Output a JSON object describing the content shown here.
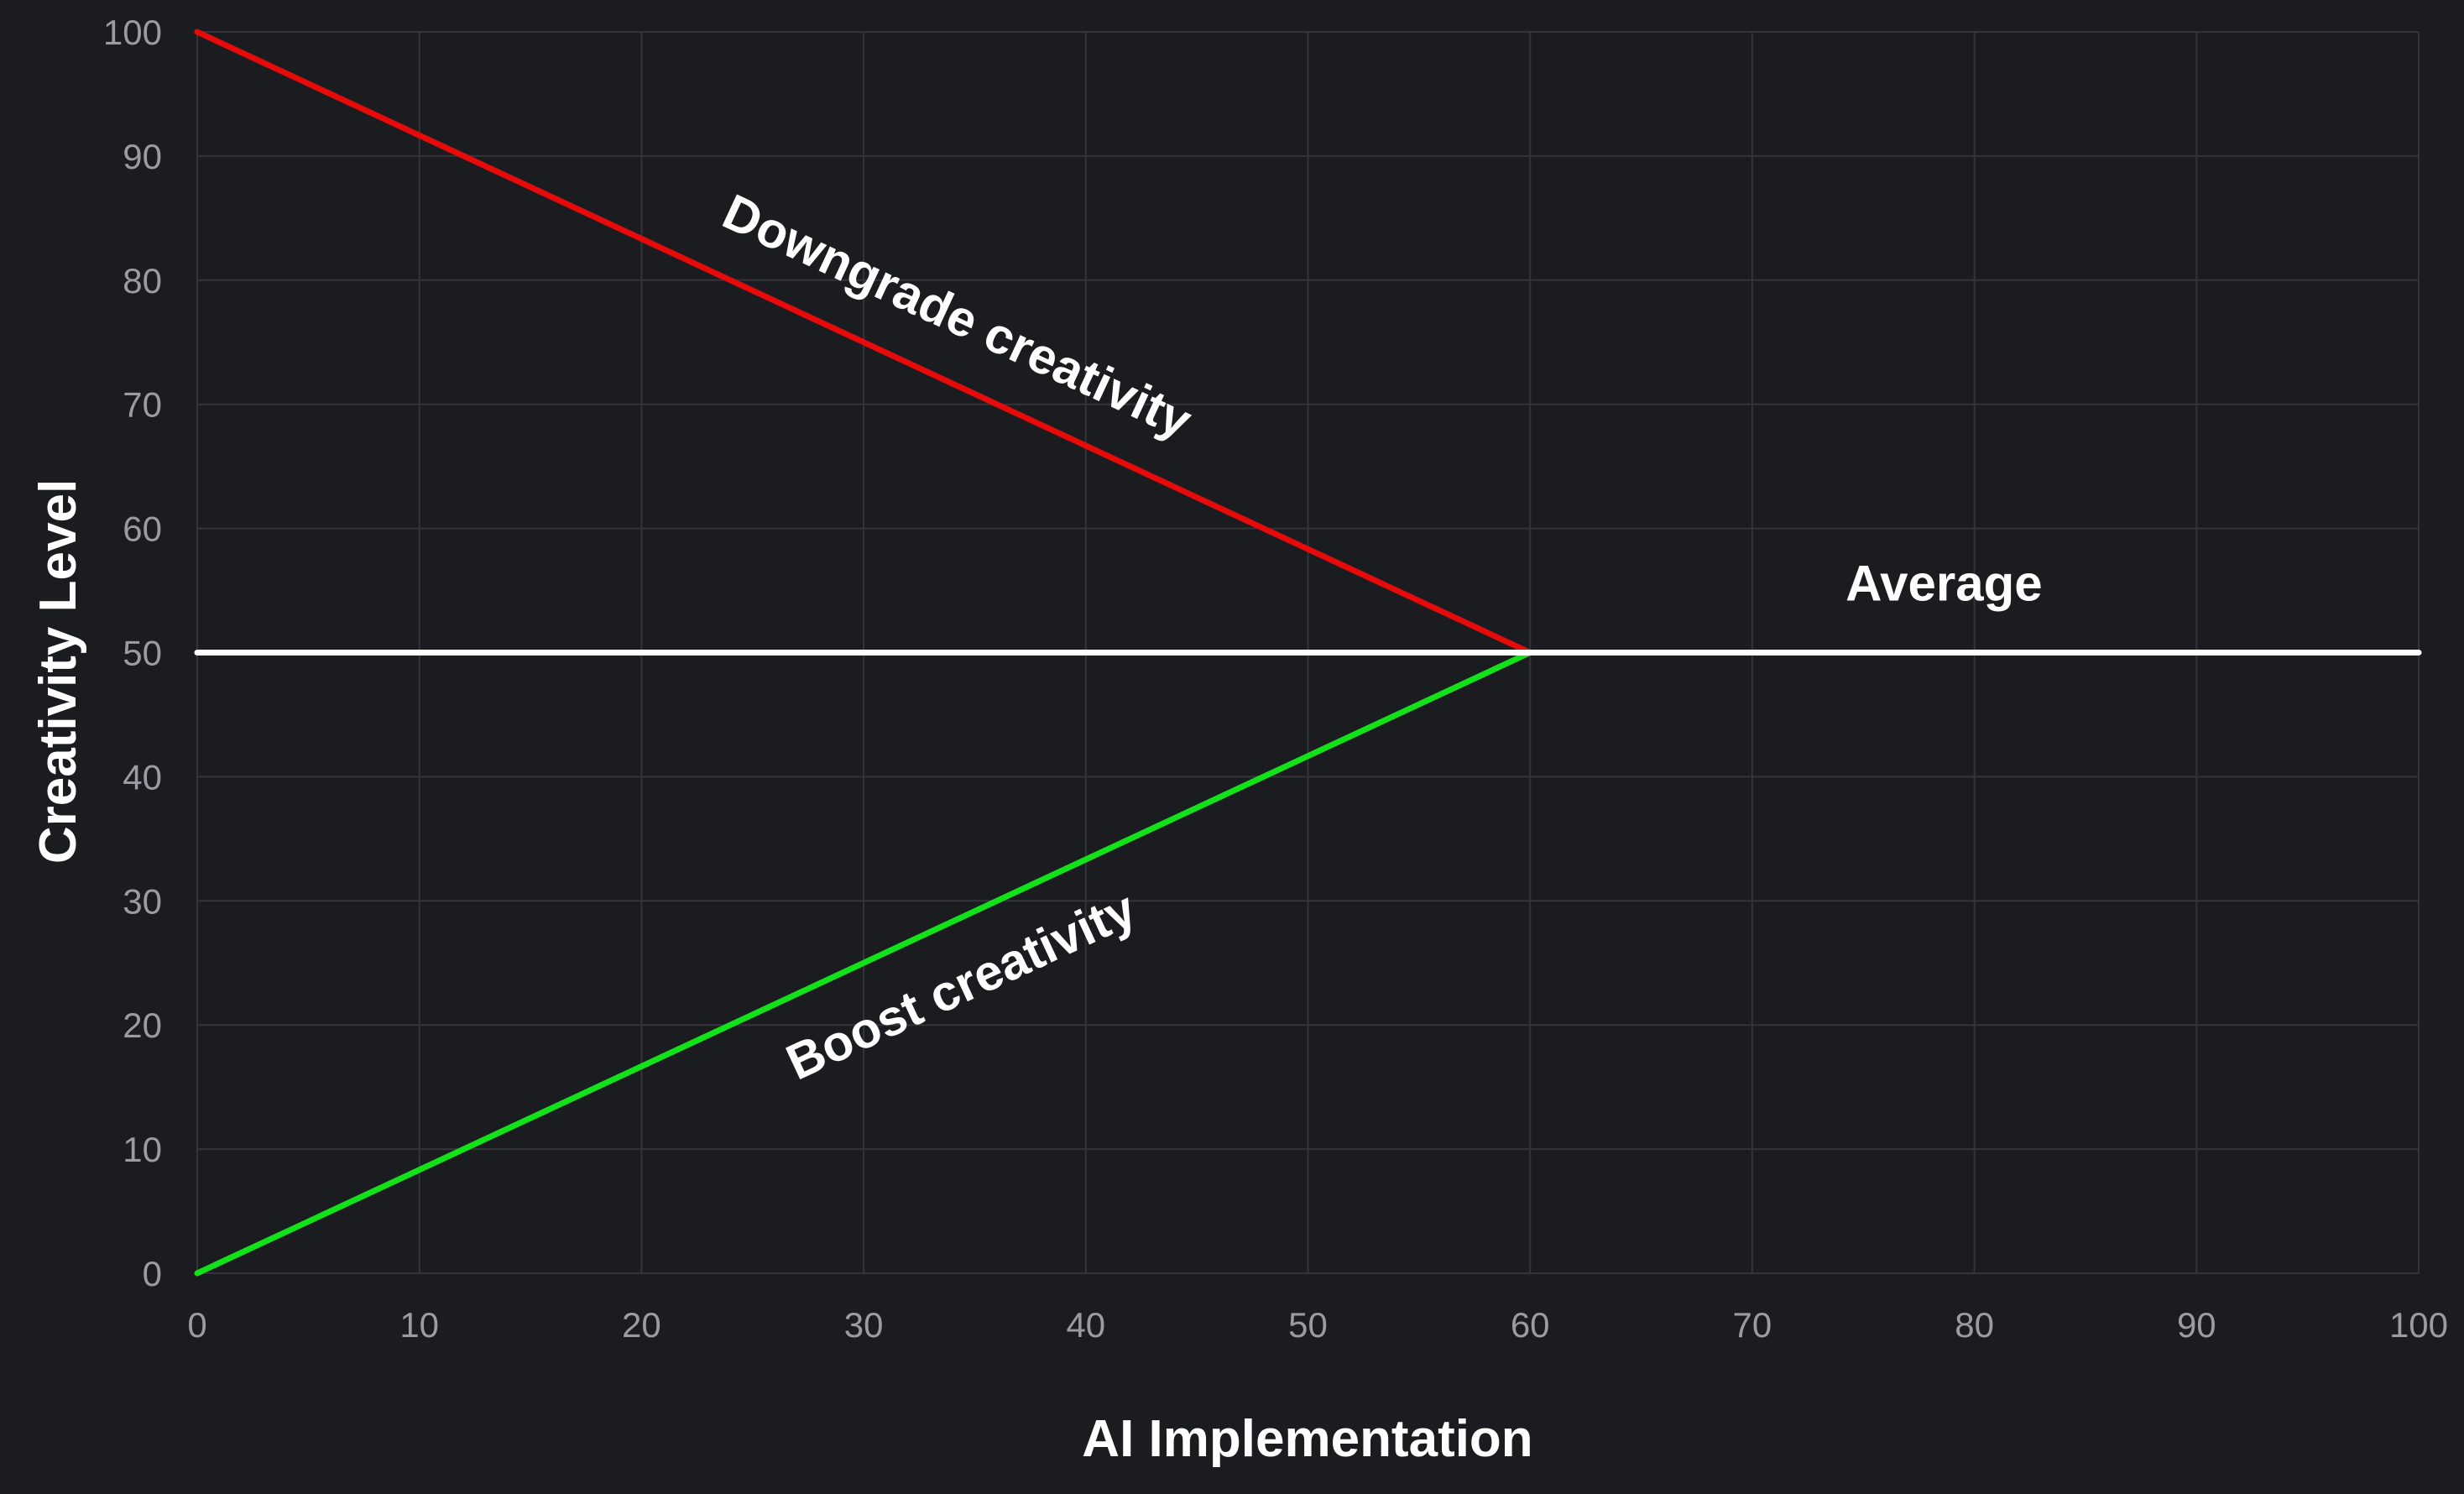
{
  "chart_data": {
    "type": "line",
    "title": "",
    "xlabel": "AI Implementation",
    "ylabel": "Creativity Level",
    "xlim": [
      0,
      100
    ],
    "ylim": [
      0,
      100
    ],
    "xticks": [
      0,
      10,
      20,
      30,
      40,
      50,
      60,
      70,
      80,
      90,
      100
    ],
    "yticks": [
      0,
      10,
      20,
      30,
      40,
      50,
      60,
      70,
      80,
      90,
      100
    ],
    "grid": true,
    "legend": "none",
    "series": [
      {
        "color": "#e50b0b",
        "x": [
          0,
          60
        ],
        "y": [
          100,
          50
        ]
      },
      {
        "color": "#13e21a",
        "x": [
          0,
          60
        ],
        "y": [
          0,
          50
        ]
      },
      {
        "color": "#ffffff",
        "x": [
          0,
          100
        ],
        "y": [
          50,
          50
        ]
      }
    ],
    "annotations": [
      {
        "text": "Downgrade creativity",
        "x": 23.5,
        "y": 84.5,
        "rotate_along_series": 0
      },
      {
        "text": "Boost creativity",
        "x": 27,
        "y": 15.5,
        "rotate_along_series": 1
      },
      {
        "text": "Average",
        "x": 74.2,
        "y": 54.2,
        "rotate_along_series": null
      }
    ],
    "colors": {
      "background": "#1b1c20",
      "grid": "#33353b",
      "tick_text": "#9a9ca3",
      "title_text": "#ffffff"
    }
  }
}
